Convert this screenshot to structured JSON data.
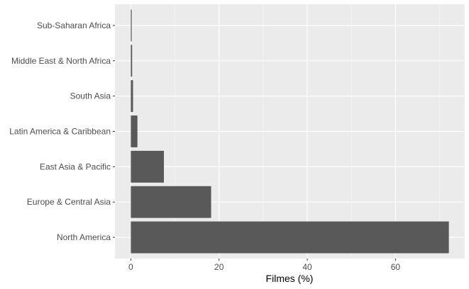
{
  "chart_data": {
    "type": "bar",
    "orientation": "horizontal",
    "categories": [
      "North America",
      "Europe & Central Asia",
      "East Asia & Pacific",
      "Latin America & Caribbean",
      "South Asia",
      "Middle East & North Africa",
      "Sub-Saharan Africa"
    ],
    "values": [
      72.1,
      18.2,
      7.5,
      1.5,
      0.5,
      0.3,
      0.2
    ],
    "xlabel": "Filmes (%)",
    "ylabel": "",
    "xlim": [
      -3.6,
      75.7
    ],
    "xticks": [
      0,
      20,
      40,
      60
    ],
    "grid": true,
    "colors": {
      "bar": "#595959",
      "panel": "#ebebeb",
      "grid_major": "#ffffff",
      "grid_minor": "#f5f5f5",
      "tick_text": "#4d4d4d",
      "title_text": "#000000"
    }
  }
}
